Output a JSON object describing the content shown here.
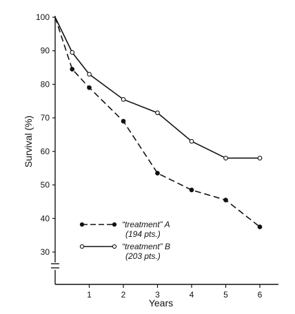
{
  "chart_data": {
    "type": "line",
    "title": "",
    "xlabel": "Years",
    "ylabel": "Survival (%)",
    "xlim": [
      0,
      6.5
    ],
    "ylim": [
      30,
      100
    ],
    "y_axis_break": true,
    "x_ticks": [
      1,
      2,
      3,
      4,
      5,
      6
    ],
    "y_ticks": [
      30,
      40,
      50,
      60,
      70,
      80,
      90,
      100
    ],
    "grid": false,
    "legend_position": "bottom-left",
    "series": [
      {
        "name": "“treatment” A",
        "sub": "(194 pts.)",
        "line_style": "dashed",
        "marker": "filled-circle",
        "color": "#111111",
        "x": [
          0,
          0.5,
          1,
          2,
          3,
          4,
          5,
          6
        ],
        "y": [
          100,
          84.5,
          79,
          69,
          53.5,
          48.5,
          45.5,
          37.5
        ]
      },
      {
        "name": "“treatment” B",
        "sub": "(203 pts.)",
        "line_style": "solid",
        "marker": "open-circle",
        "color": "#111111",
        "x": [
          0,
          0.5,
          1,
          2,
          3,
          4,
          5,
          6
        ],
        "y": [
          100,
          89.5,
          83,
          75.5,
          71.5,
          63,
          58,
          58
        ]
      }
    ]
  }
}
